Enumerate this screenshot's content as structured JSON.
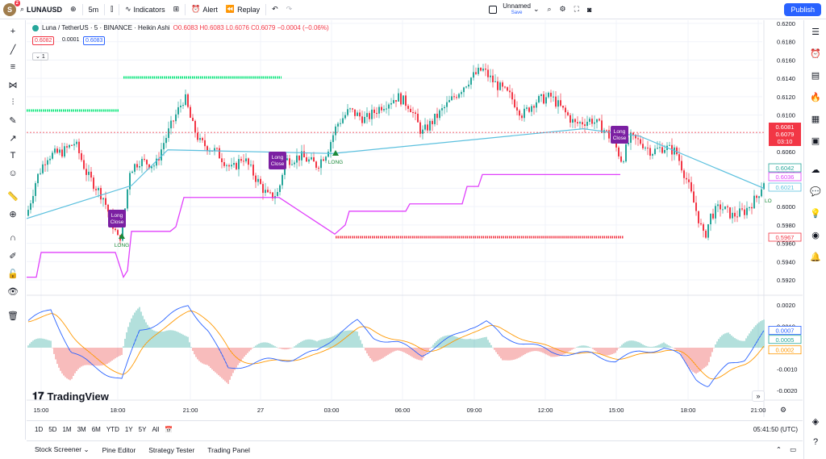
{
  "topbar": {
    "avatar_letter": "S",
    "notif_count": "2",
    "symbol": "LUNAUSD",
    "interval": "5m",
    "indicators_label": "Indicators",
    "alert_label": "Alert",
    "replay_label": "Replay",
    "layout_name": "Unnamed",
    "layout_save": "Save",
    "publish_label": "Publish"
  },
  "legend": {
    "title": "Luna / TetherUS · 5 · BINANCE · Heikin Ashi",
    "ohlc": "O0.6083 H0.6083 L0.6076 C0.6079 −0.0004 (−0.06%)",
    "bid": "0.6082",
    "spread": "0.0001",
    "ask": "0.6083",
    "indicator_count": "1"
  },
  "price_axis": {
    "ticks": [
      "0.6200",
      "0.6180",
      "0.6160",
      "0.6140",
      "0.6120",
      "0.6100",
      "0.6080",
      "0.6060",
      "0.6040",
      "0.6020",
      "0.6000",
      "0.5980",
      "0.5960",
      "0.5940",
      "0.5920"
    ],
    "last_price": "0.6081",
    "last_close": "0.6079",
    "countdown": "03:10",
    "label_a": "0.6042",
    "label_b": "0.6036",
    "label_c": "0.6021",
    "label_d": "0.5967"
  },
  "macd_axis": {
    "ticks": [
      "0.0020",
      "0.0010",
      "-0.0010",
      "-0.0020"
    ],
    "label_macd": "0.0007",
    "label_signal": "0.0005",
    "label_hist": "0.0002"
  },
  "time_axis": [
    "15:00",
    "18:00",
    "21:00",
    "27",
    "03:00",
    "06:00",
    "09:00",
    "12:00",
    "15:00",
    "18:00",
    "21:00"
  ],
  "chart_labels": {
    "long_close": [
      "Long",
      "Close"
    ],
    "long": "LONG",
    "long_short": "LO"
  },
  "ranges": [
    "1D",
    "5D",
    "1M",
    "3M",
    "6M",
    "YTD",
    "1Y",
    "5Y",
    "All"
  ],
  "clock": "05:41:50 (UTC)",
  "footer_tabs": [
    "Stock Screener",
    "Pine Editor",
    "Strategy Tester",
    "Trading Panel"
  ],
  "logo_text": "TradingView",
  "colors": {
    "up": "#26a69a",
    "down": "#f23645",
    "trend": "#5bc0de",
    "stop": "#e040fb",
    "green_level": "#00e676",
    "red_level": "#f23645",
    "macd": "#2962ff",
    "signal": "#ff9800",
    "marker": "#7b1fa2",
    "accent": "#2962ff"
  }
}
